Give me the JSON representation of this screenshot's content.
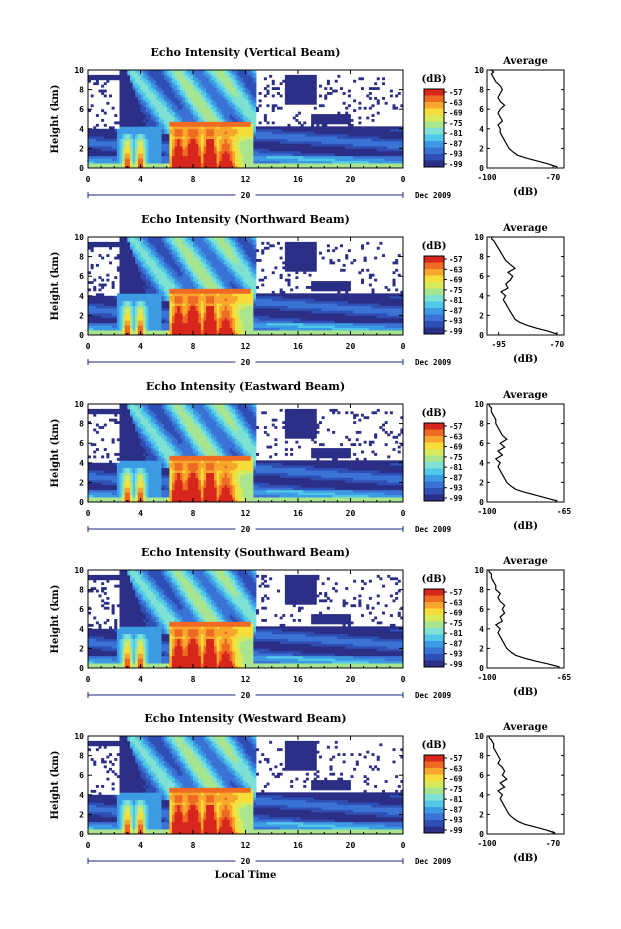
{
  "colors": {
    "scale": [
      "#2c2f86",
      "#2e4fb4",
      "#3a72d6",
      "#3d9be3",
      "#52c8e8",
      "#7fe0d4",
      "#a9e58f",
      "#d6ea5a",
      "#f7dd3a",
      "#f9a72c",
      "#ef6a22",
      "#d7261c"
    ]
  },
  "chart_data": [
    {
      "type": "heatmap",
      "title": "Echo Intensity (Vertical Beam)",
      "ylabel": "Height (km)",
      "xlim": [
        0,
        24
      ],
      "ylim": [
        0,
        10
      ],
      "x_ticks": [
        "0",
        "4",
        "8",
        "12",
        "16",
        "20",
        "0"
      ],
      "y_ticks": [
        "0",
        "2",
        "4",
        "6",
        "8",
        "10"
      ],
      "date_marker": "20",
      "date_label": "Dec 2009",
      "colorbar": {
        "unit": "(dB)",
        "ticks": [
          "-57",
          "-63",
          "-69",
          "-75",
          "-81",
          "-87",
          "-93",
          "-99"
        ]
      },
      "average_profile": {
        "title": "Average",
        "xlabel": "(dB)",
        "xlim": [
          -100,
          -65
        ],
        "x_ticks": [
          "-100",
          "-70"
        ],
        "y_ticks": [
          "0",
          "2",
          "4",
          "6",
          "8",
          "10"
        ],
        "x": [
          -68,
          -72,
          -77,
          -82,
          -86,
          -88,
          -90,
          -91,
          -92,
          -93,
          -94,
          -94,
          -95,
          -93,
          -94,
          -95,
          -94,
          -92,
          -94,
          -95,
          -94,
          -93,
          -94,
          -96,
          -97,
          -98,
          -97,
          -98
        ],
        "y": [
          0.1,
          0.4,
          0.7,
          1.0,
          1.3,
          1.6,
          2.0,
          2.4,
          2.8,
          3.2,
          3.6,
          4.0,
          4.4,
          4.8,
          5.2,
          5.6,
          6.0,
          6.4,
          6.8,
          7.2,
          7.6,
          8.0,
          8.4,
          8.8,
          9.2,
          9.6,
          9.8,
          10.0
        ]
      }
    },
    {
      "type": "heatmap",
      "title": "Echo Intensity (Northward Beam)",
      "ylabel": "Height (km)",
      "xlim": [
        0,
        24
      ],
      "ylim": [
        0,
        10
      ],
      "x_ticks": [
        "0",
        "4",
        "8",
        "12",
        "16",
        "20",
        "0"
      ],
      "y_ticks": [
        "0",
        "2",
        "4",
        "6",
        "8",
        "10"
      ],
      "date_marker": "20",
      "date_label": "Dec 2009",
      "colorbar": {
        "unit": "(dB)",
        "ticks": [
          "-57",
          "-63",
          "-69",
          "-75",
          "-81",
          "-87",
          "-93",
          "-99"
        ]
      },
      "average_profile": {
        "title": "Average",
        "xlabel": "(dB)",
        "xlim": [
          -100,
          -67
        ],
        "x_ticks": [
          "-95",
          "-70"
        ],
        "y_ticks": [
          "0",
          "2",
          "4",
          "6",
          "8",
          "10"
        ],
        "x": [
          -70,
          -74,
          -79,
          -83,
          -86,
          -88,
          -89,
          -90,
          -91,
          -92,
          -93,
          -92,
          -94,
          -91,
          -92,
          -90,
          -89,
          -91,
          -88,
          -90,
          -92,
          -93,
          -94,
          -95,
          -96,
          -97,
          -98,
          -98
        ],
        "y": [
          0.1,
          0.4,
          0.7,
          1.0,
          1.3,
          1.6,
          2.0,
          2.4,
          2.8,
          3.2,
          3.6,
          4.0,
          4.4,
          4.8,
          5.2,
          5.6,
          6.0,
          6.4,
          6.8,
          7.2,
          7.6,
          8.0,
          8.4,
          8.8,
          9.2,
          9.6,
          9.8,
          10.0
        ]
      }
    },
    {
      "type": "heatmap",
      "title": "Echo Intensity (Eastward Beam)",
      "ylabel": "Height (km)",
      "xlim": [
        0,
        24
      ],
      "ylim": [
        0,
        10
      ],
      "x_ticks": [
        "0",
        "4",
        "8",
        "12",
        "16",
        "20",
        "0"
      ],
      "y_ticks": [
        "0",
        "2",
        "4",
        "6",
        "8",
        "10"
      ],
      "date_marker": "20",
      "date_label": "Dec 2009",
      "colorbar": {
        "unit": "(dB)",
        "ticks": [
          "-57",
          "-63",
          "-69",
          "-75",
          "-81",
          "-87",
          "-93",
          "-99"
        ]
      },
      "average_profile": {
        "title": "Average",
        "xlabel": "(dB)",
        "xlim": [
          -100,
          -65
        ],
        "x_ticks": [
          "-100",
          "-65"
        ],
        "y_ticks": [
          "0",
          "2",
          "4",
          "6",
          "8",
          "10"
        ],
        "x": [
          -68,
          -73,
          -78,
          -83,
          -87,
          -89,
          -91,
          -92,
          -93,
          -94,
          -95,
          -94,
          -96,
          -93,
          -95,
          -92,
          -94,
          -91,
          -93,
          -94,
          -95,
          -96,
          -96,
          -97,
          -98,
          -98,
          -99,
          -99
        ],
        "y": [
          0.1,
          0.4,
          0.7,
          1.0,
          1.3,
          1.6,
          2.0,
          2.4,
          2.8,
          3.2,
          3.6,
          4.0,
          4.4,
          4.8,
          5.2,
          5.6,
          6.0,
          6.4,
          6.8,
          7.2,
          7.6,
          8.0,
          8.4,
          8.8,
          9.2,
          9.6,
          9.8,
          10.0
        ]
      }
    },
    {
      "type": "heatmap",
      "title": "Echo Intensity (Southward Beam)",
      "ylabel": "Height (km)",
      "xlim": [
        0,
        24
      ],
      "ylim": [
        0,
        10
      ],
      "x_ticks": [
        "0",
        "4",
        "8",
        "12",
        "16",
        "20",
        "0"
      ],
      "y_ticks": [
        "0",
        "2",
        "4",
        "6",
        "8",
        "10"
      ],
      "date_marker": "20",
      "date_label": "Dec 2009",
      "colorbar": {
        "unit": "(dB)",
        "ticks": [
          "-57",
          "-63",
          "-69",
          "-75",
          "-81",
          "-87",
          "-93",
          "-99"
        ]
      },
      "average_profile": {
        "title": "Average",
        "xlabel": "(dB)",
        "xlim": [
          -100,
          -65
        ],
        "x_ticks": [
          "-100",
          "-65"
        ],
        "y_ticks": [
          "0",
          "2",
          "4",
          "6",
          "8",
          "10"
        ],
        "x": [
          -67,
          -72,
          -78,
          -83,
          -87,
          -89,
          -91,
          -92,
          -93,
          -94,
          -95,
          -94,
          -96,
          -93,
          -94,
          -92,
          -93,
          -92,
          -94,
          -95,
          -94,
          -96,
          -96,
          -97,
          -98,
          -98,
          -99,
          -99
        ],
        "y": [
          0.1,
          0.4,
          0.7,
          1.0,
          1.3,
          1.6,
          2.0,
          2.4,
          2.8,
          3.2,
          3.6,
          4.0,
          4.4,
          4.8,
          5.2,
          5.6,
          6.0,
          6.4,
          6.8,
          7.2,
          7.6,
          8.0,
          8.4,
          8.8,
          9.2,
          9.6,
          9.8,
          10.0
        ]
      }
    },
    {
      "type": "heatmap",
      "title": "Echo Intensity (Westward Beam)",
      "ylabel": "Height (km)",
      "xlabel": "Local Time",
      "xlim": [
        0,
        24
      ],
      "ylim": [
        0,
        10
      ],
      "x_ticks": [
        "0",
        "4",
        "8",
        "12",
        "16",
        "20",
        "0"
      ],
      "y_ticks": [
        "0",
        "2",
        "4",
        "6",
        "8",
        "10"
      ],
      "date_marker": "20",
      "date_label": "Dec 2009",
      "colorbar": {
        "unit": "(dB)",
        "ticks": [
          "-57",
          "-63",
          "-69",
          "-75",
          "-81",
          "-87",
          "-93",
          "-99"
        ]
      },
      "average_profile": {
        "title": "Average",
        "xlabel": "(dB)",
        "xlim": [
          -100,
          -65
        ],
        "x_ticks": [
          "-100",
          "-70"
        ],
        "y_ticks": [
          "0",
          "2",
          "4",
          "6",
          "8",
          "10"
        ],
        "x": [
          -69,
          -73,
          -78,
          -83,
          -86,
          -88,
          -90,
          -91,
          -92,
          -93,
          -94,
          -93,
          -95,
          -92,
          -94,
          -91,
          -93,
          -92,
          -93,
          -95,
          -94,
          -95,
          -96,
          -97,
          -97,
          -98,
          -99,
          -99
        ],
        "y": [
          0.1,
          0.4,
          0.7,
          1.0,
          1.3,
          1.6,
          2.0,
          2.4,
          2.8,
          3.2,
          3.6,
          4.0,
          4.4,
          4.8,
          5.2,
          5.6,
          6.0,
          6.4,
          6.8,
          7.2,
          7.6,
          8.0,
          8.4,
          8.8,
          9.2,
          9.6,
          9.8,
          10.0
        ]
      }
    }
  ]
}
